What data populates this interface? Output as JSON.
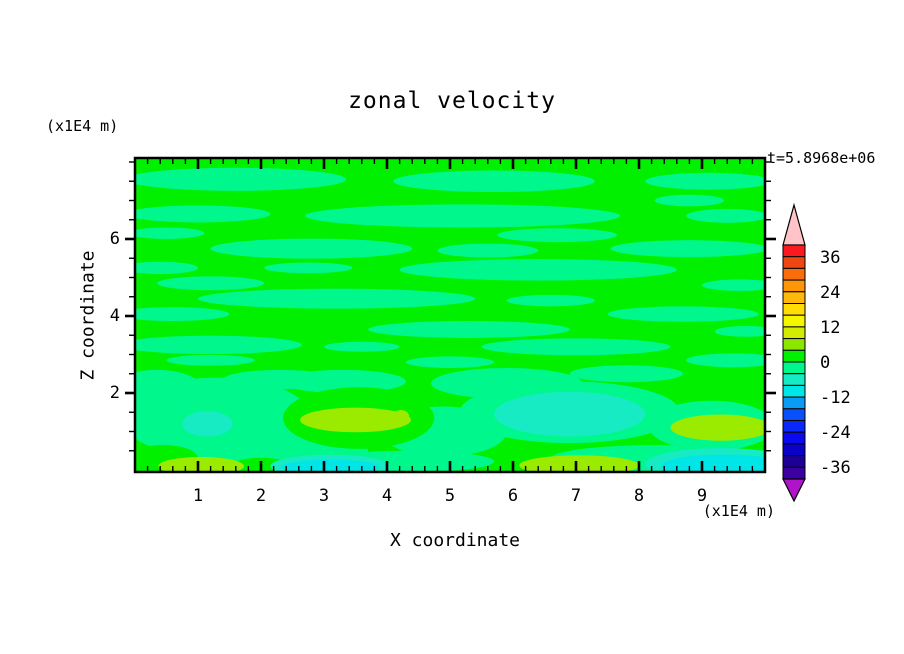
{
  "title": "zonal velocity",
  "timestamp": "t=5.8968e+06",
  "axes": {
    "x": {
      "label": "X coordinate",
      "unit": "(x1E4 m)",
      "min": 0,
      "max": 10,
      "major_tick_values": [
        1,
        2,
        3,
        4,
        5,
        6,
        7,
        8,
        9
      ],
      "tick_labels": [
        "1",
        "2",
        "3",
        "4",
        "5",
        "6",
        "7",
        "8",
        "9"
      ],
      "minor_step": 0.2
    },
    "y": {
      "label": "Z coordinate",
      "unit": "(x1E4 m)",
      "min": 0,
      "max": 8.1,
      "major_tick_values": [
        2,
        4,
        6
      ],
      "tick_labels": [
        "2",
        "4",
        "6"
      ],
      "minor_step": 0.5
    }
  },
  "colorbar": {
    "level_max": 40,
    "level_min": -40,
    "level_step": 4,
    "tick_labels": [
      "36",
      "24",
      "12",
      "0",
      "-12",
      "-24",
      "-36"
    ],
    "tick_values": [
      36,
      24,
      12,
      0,
      -12,
      -24,
      -36
    ],
    "colors": [
      "#FA191E",
      "#F04614",
      "#FA6E0A",
      "#FF960A",
      "#FFB90A",
      "#FFDC05",
      "#F5F500",
      "#D2EB00",
      "#8CE600",
      "#00F000",
      "#00F78C",
      "#16EBC3",
      "#00E6E6",
      "#0A9BF5",
      "#0A50FA",
      "#0A28FA",
      "#0A0AF0",
      "#0A00C8",
      "#1E0096",
      "#3C00A0"
    ],
    "over_color": "#FFC3C8",
    "under_color": "#AF14C8"
  },
  "chart_data": {
    "type": "contour",
    "title": "zonal velocity",
    "xlabel": "X coordinate (x1E4 m)",
    "ylabel": "Z coordinate (x1E4 m)",
    "time_annotation": "t=5.8968e+06",
    "x_range": [
      0,
      10
    ],
    "z_range": [
      0,
      8.1
    ],
    "contour_levels": [
      -40,
      -36,
      -32,
      -28,
      -24,
      -20,
      -16,
      -12,
      -8,
      -4,
      0,
      4,
      8,
      12,
      16,
      20,
      24,
      28,
      32,
      36,
      40
    ],
    "value_band_colors": {
      "0_to_4": "#00F000",
      "-4_to_0": "#00F78C",
      "-8_to_-4": "#16EBC3",
      "-12_to_-8": "#00E6E6",
      "4_to_8": "#9BEB00"
    },
    "palette": {
      "green": "#00F000",
      "spring": "#00F78C",
      "teal": "#16EBC3",
      "cyan": "#00E6E6",
      "yellow_green": "#9BEB00"
    },
    "background_band": "0_to_4",
    "features_format": [
      "color_key",
      "x_center",
      "z_center",
      "x_radius",
      "z_radius"
    ],
    "features": [
      [
        "spring",
        1.6,
        7.55,
        1.75,
        0.3
      ],
      [
        "spring",
        5.7,
        7.5,
        1.6,
        0.28
      ],
      [
        "spring",
        9.1,
        7.5,
        1.0,
        0.22
      ],
      [
        "spring",
        8.8,
        7.0,
        0.55,
        0.15
      ],
      [
        "spring",
        1.0,
        6.65,
        1.15,
        0.22
      ],
      [
        "spring",
        5.2,
        6.6,
        2.5,
        0.3
      ],
      [
        "spring",
        9.4,
        6.6,
        0.65,
        0.18
      ],
      [
        "spring",
        0.5,
        6.15,
        0.6,
        0.15
      ],
      [
        "spring",
        6.7,
        6.1,
        0.95,
        0.18
      ],
      [
        "spring",
        2.8,
        5.75,
        1.6,
        0.26
      ],
      [
        "spring",
        5.6,
        5.7,
        0.8,
        0.18
      ],
      [
        "spring",
        8.8,
        5.75,
        1.25,
        0.22
      ],
      [
        "spring",
        0.4,
        5.25,
        0.6,
        0.16
      ],
      [
        "spring",
        2.75,
        5.25,
        0.7,
        0.14
      ],
      [
        "spring",
        6.4,
        5.2,
        2.2,
        0.28
      ],
      [
        "spring",
        1.2,
        4.85,
        0.85,
        0.18
      ],
      [
        "spring",
        9.6,
        4.8,
        0.6,
        0.15
      ],
      [
        "spring",
        3.2,
        4.45,
        2.2,
        0.26
      ],
      [
        "spring",
        6.6,
        4.4,
        0.7,
        0.15
      ],
      [
        "spring",
        0.6,
        4.05,
        0.9,
        0.18
      ],
      [
        "spring",
        8.7,
        4.05,
        1.2,
        0.2
      ],
      [
        "spring",
        5.3,
        3.65,
        1.6,
        0.22
      ],
      [
        "spring",
        9.7,
        3.6,
        0.5,
        0.14
      ],
      [
        "spring",
        1.2,
        3.25,
        1.45,
        0.24
      ],
      [
        "spring",
        3.6,
        3.2,
        0.6,
        0.13
      ],
      [
        "spring",
        7.0,
        3.2,
        1.5,
        0.22
      ],
      [
        "spring",
        1.2,
        2.85,
        0.7,
        0.14
      ],
      [
        "spring",
        5.0,
        2.8,
        0.7,
        0.15
      ],
      [
        "spring",
        9.5,
        2.85,
        0.75,
        0.18
      ],
      [
        "spring",
        2.3,
        2.35,
        0.9,
        0.25
      ],
      [
        "spring",
        7.8,
        2.5,
        0.9,
        0.22
      ],
      [
        "spring",
        1.3,
        1.35,
        1.5,
        1.05
      ],
      [
        "spring",
        0.35,
        2.05,
        0.75,
        0.55
      ],
      [
        "spring",
        2.0,
        0.5,
        1.7,
        0.4
      ],
      [
        "spring",
        3.3,
        2.3,
        1.0,
        0.3
      ],
      [
        "spring",
        4.9,
        1.0,
        1.0,
        0.65
      ],
      [
        "spring",
        5.9,
        2.25,
        1.2,
        0.4
      ],
      [
        "spring",
        6.9,
        1.5,
        1.75,
        0.8
      ],
      [
        "spring",
        9.15,
        1.15,
        1.0,
        0.65
      ],
      [
        "spring",
        8.3,
        0.3,
        1.7,
        0.35
      ],
      [
        "spring",
        4.3,
        0.22,
        1.4,
        0.28
      ],
      [
        "green",
        3.55,
        1.35,
        1.2,
        0.8
      ],
      [
        "green",
        0.45,
        0.3,
        0.55,
        0.35
      ],
      [
        "green",
        2.0,
        0.12,
        0.45,
        0.2
      ],
      [
        "teal",
        3.1,
        0.1,
        0.95,
        0.3
      ],
      [
        "cyan",
        3.1,
        0.07,
        0.78,
        0.2
      ],
      [
        "teal",
        9.3,
        0.15,
        1.2,
        0.42
      ],
      [
        "cyan",
        9.35,
        0.1,
        1.0,
        0.3
      ],
      [
        "yellow_green",
        1.05,
        0.1,
        0.68,
        0.24
      ],
      [
        "yellow_green",
        7.05,
        0.12,
        0.95,
        0.26
      ],
      [
        "teal",
        1.15,
        1.2,
        0.4,
        0.33
      ],
      [
        "teal",
        6.9,
        1.45,
        1.2,
        0.58
      ],
      [
        "yellow_green",
        3.5,
        1.3,
        0.88,
        0.32
      ],
      [
        "yellow_green",
        9.3,
        1.1,
        0.8,
        0.34
      ],
      [
        "yellow_green",
        4.22,
        1.4,
        0.13,
        0.16
      ]
    ]
  }
}
